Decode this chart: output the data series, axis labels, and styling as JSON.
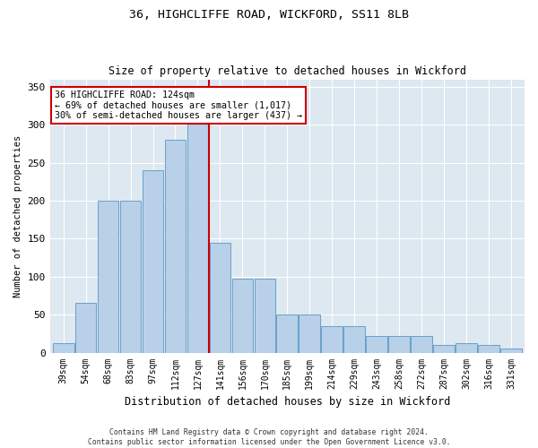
{
  "title1": "36, HIGHCLIFFE ROAD, WICKFORD, SS11 8LB",
  "title2": "Size of property relative to detached houses in Wickford",
  "xlabel": "Distribution of detached houses by size in Wickford",
  "ylabel": "Number of detached properties",
  "footnote": "Contains HM Land Registry data © Crown copyright and database right 2024.\nContains public sector information licensed under the Open Government Licence v3.0.",
  "categories": [
    "39sqm",
    "54sqm",
    "68sqm",
    "83sqm",
    "97sqm",
    "112sqm",
    "127sqm",
    "141sqm",
    "156sqm",
    "170sqm",
    "185sqm",
    "199sqm",
    "214sqm",
    "229sqm",
    "243sqm",
    "258sqm",
    "272sqm",
    "287sqm",
    "302sqm",
    "316sqm",
    "331sqm"
  ],
  "bar_values": [
    13,
    65,
    200,
    200,
    240,
    280,
    330,
    145,
    98,
    98,
    50,
    50,
    35,
    35,
    22,
    22,
    22,
    10,
    12,
    10,
    5
  ],
  "vline_index": 6.5,
  "annotation_text": "36 HIGHCLIFFE ROAD: 124sqm\n← 69% of detached houses are smaller (1,017)\n30% of semi-detached houses are larger (437) →",
  "bar_color": "#b8d0e8",
  "bar_edge_color": "#6aa0cc",
  "vline_color": "#cc0000",
  "background_color": "#dde8f0",
  "ylim": [
    0,
    360
  ],
  "yticks": [
    0,
    50,
    100,
    150,
    200,
    250,
    300,
    350
  ]
}
